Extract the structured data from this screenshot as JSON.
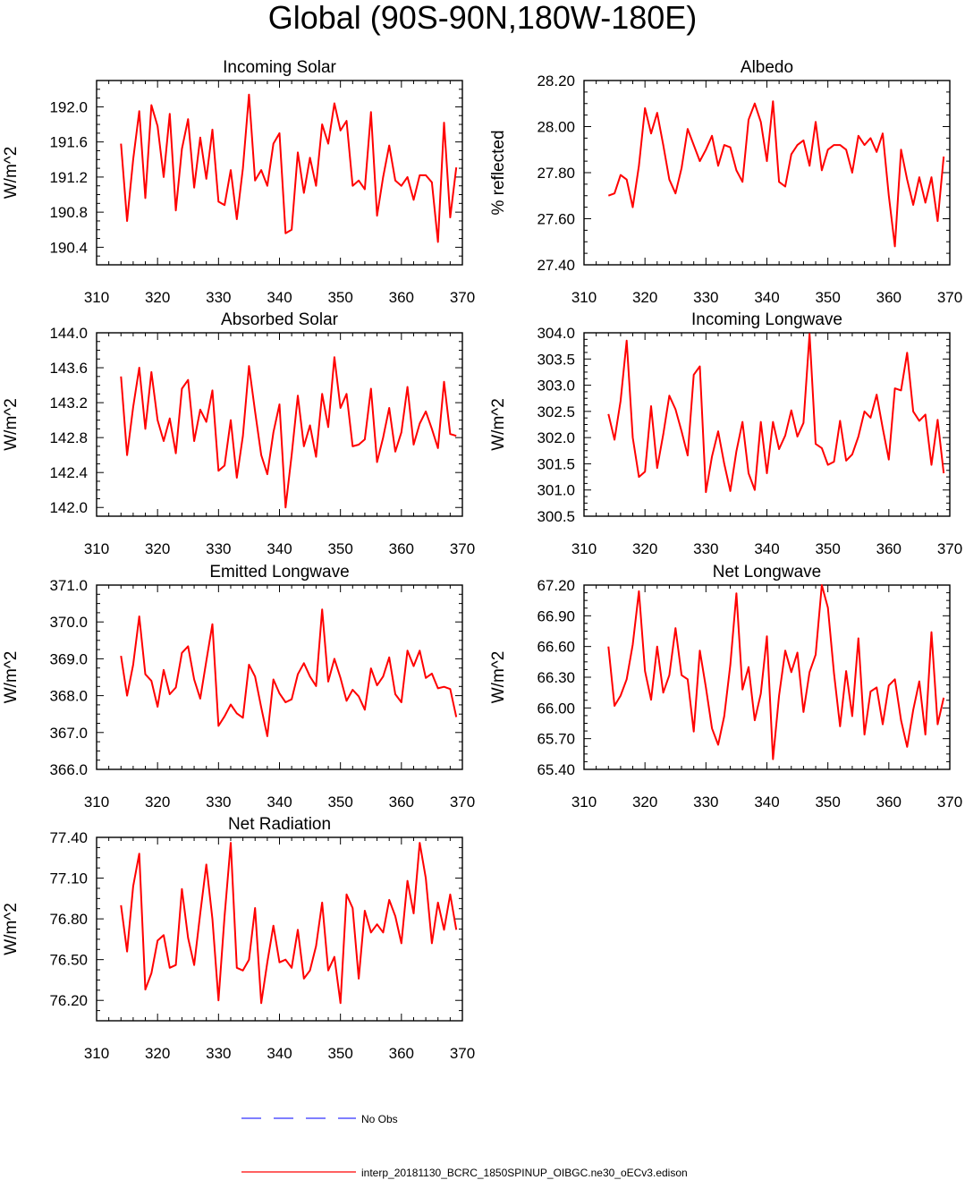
{
  "figure": {
    "title": "Global (90S-90N,180W-180E)"
  },
  "legend": {
    "items": [
      {
        "label": "No Obs",
        "color": "#3333ff",
        "style": "dashed"
      },
      {
        "label": "interp_20181130_BCRC_1850SPINUP_OIBGC.ne30_oECv3.edison",
        "color": "#ff0000",
        "style": "solid"
      }
    ]
  },
  "chart_data": [
    {
      "type": "line",
      "title": "Incoming Solar",
      "ylabel": "W/m^2",
      "xlim": [
        310,
        370
      ],
      "ylim": [
        190.2,
        192.3
      ],
      "xticks": [
        310,
        320,
        330,
        340,
        350,
        360,
        370
      ],
      "yticks": [
        "190.4",
        "190.8",
        "191.2",
        "191.6",
        "192.0"
      ],
      "x_start": 314,
      "series": [
        {
          "color": "#ff0000",
          "values": [
            191.58,
            190.7,
            191.4,
            191.95,
            190.96,
            192.02,
            191.78,
            191.2,
            191.92,
            190.82,
            191.52,
            191.86,
            191.08,
            191.65,
            191.18,
            191.74,
            190.92,
            190.88,
            191.28,
            190.72,
            191.3,
            192.14,
            191.16,
            191.28,
            191.1,
            191.58,
            191.7,
            190.56,
            190.6,
            191.48,
            191.02,
            191.42,
            191.1,
            191.8,
            191.58,
            192.04,
            191.73,
            191.84,
            191.1,
            191.16,
            191.06,
            191.94,
            190.76,
            191.2,
            191.56,
            191.16,
            191.1,
            191.2,
            190.94,
            191.22,
            191.22,
            191.14,
            190.46,
            191.82,
            190.74,
            191.31
          ]
        }
      ]
    },
    {
      "type": "line",
      "title": "Albedo",
      "ylabel": "% reflected",
      "xlim": [
        310,
        370
      ],
      "ylim": [
        27.4,
        28.2
      ],
      "xticks": [
        310,
        320,
        330,
        340,
        350,
        360,
        370
      ],
      "yticks": [
        "27.40",
        "27.60",
        "27.80",
        "28.00",
        "28.20"
      ],
      "x_start": 314,
      "series": [
        {
          "color": "#ff0000",
          "values": [
            27.7,
            27.71,
            27.79,
            27.77,
            27.65,
            27.83,
            28.08,
            27.97,
            28.06,
            27.92,
            27.77,
            27.71,
            27.82,
            27.99,
            27.92,
            27.85,
            27.9,
            27.96,
            27.83,
            27.92,
            27.91,
            27.81,
            27.76,
            28.03,
            28.1,
            28.02,
            27.85,
            28.11,
            27.76,
            27.74,
            27.88,
            27.92,
            27.94,
            27.83,
            28.02,
            27.81,
            27.9,
            27.92,
            27.92,
            27.9,
            27.8,
            27.96,
            27.92,
            27.95,
            27.89,
            27.97,
            27.7,
            27.48,
            27.9,
            27.77,
            27.66,
            27.78,
            27.67,
            27.78,
            27.59,
            27.87
          ]
        }
      ]
    },
    {
      "type": "line",
      "title": "Absorbed Solar",
      "ylabel": "W/m^2",
      "xlim": [
        310,
        370
      ],
      "ylim": [
        141.9,
        144.0
      ],
      "xticks": [
        310,
        320,
        330,
        340,
        350,
        360,
        370
      ],
      "yticks": [
        "142.0",
        "142.4",
        "142.8",
        "143.2",
        "143.6",
        "144.0"
      ],
      "x_start": 314,
      "series": [
        {
          "color": "#ff0000",
          "values": [
            143.5,
            142.6,
            143.15,
            143.6,
            142.9,
            143.55,
            143.0,
            142.76,
            143.02,
            142.62,
            143.36,
            143.46,
            142.76,
            143.12,
            142.98,
            143.34,
            142.42,
            142.48,
            143.0,
            142.34,
            142.82,
            143.62,
            143.1,
            142.6,
            142.38,
            142.86,
            143.18,
            142.0,
            142.6,
            143.28,
            142.7,
            142.94,
            142.58,
            143.3,
            142.92,
            143.72,
            143.14,
            143.3,
            142.7,
            142.72,
            142.78,
            143.36,
            142.52,
            142.8,
            143.14,
            142.64,
            142.86,
            143.38,
            142.72,
            142.96,
            143.1,
            142.9,
            142.68,
            143.44,
            142.84,
            142.82
          ]
        }
      ]
    },
    {
      "type": "line",
      "title": "Incoming Longwave",
      "ylabel": "W/m^2",
      "xlim": [
        310,
        370
      ],
      "ylim": [
        300.5,
        304.0
      ],
      "xticks": [
        310,
        320,
        330,
        340,
        350,
        360,
        370
      ],
      "yticks": [
        "300.5",
        "301.0",
        "301.5",
        "302.0",
        "302.5",
        "303.0",
        "303.5",
        "304.0"
      ],
      "x_start": 314,
      "series": [
        {
          "color": "#ff0000",
          "values": [
            302.45,
            301.96,
            302.7,
            303.85,
            302.0,
            301.25,
            301.35,
            302.6,
            301.42,
            302.06,
            302.8,
            302.54,
            302.12,
            301.66,
            303.2,
            303.36,
            300.96,
            301.64,
            302.12,
            301.5,
            300.98,
            301.74,
            302.3,
            301.32,
            301.0,
            302.3,
            301.32,
            302.3,
            301.78,
            302.04,
            302.52,
            302.02,
            302.28,
            303.98,
            301.88,
            301.8,
            301.48,
            301.54,
            302.32,
            301.56,
            301.68,
            302.02,
            302.5,
            302.38,
            302.82,
            302.18,
            301.58,
            302.94,
            302.9,
            303.62,
            302.5,
            302.32,
            302.44,
            301.48,
            302.34,
            301.32
          ]
        }
      ]
    },
    {
      "type": "line",
      "title": "Emitted Longwave",
      "ylabel": "W/m^2",
      "xlim": [
        310,
        370
      ],
      "ylim": [
        366.0,
        371.0
      ],
      "xticks": [
        310,
        320,
        330,
        340,
        350,
        360,
        370
      ],
      "yticks": [
        "366.0",
        "367.0",
        "368.0",
        "369.0",
        "370.0",
        "371.0"
      ],
      "x_start": 314,
      "series": [
        {
          "color": "#ff0000",
          "values": [
            369.08,
            368.0,
            368.84,
            370.15,
            368.58,
            368.4,
            367.7,
            368.7,
            368.04,
            368.22,
            369.16,
            369.34,
            368.44,
            367.92,
            368.94,
            369.94,
            367.18,
            367.44,
            367.76,
            367.52,
            367.4,
            368.84,
            368.52,
            367.68,
            366.9,
            368.44,
            368.06,
            367.82,
            367.9,
            368.58,
            368.88,
            368.52,
            368.26,
            370.34,
            368.38,
            369.0,
            368.48,
            367.86,
            368.16,
            367.98,
            367.62,
            368.74,
            368.28,
            368.52,
            369.04,
            368.04,
            367.82,
            369.22,
            368.8,
            369.22,
            368.48,
            368.6,
            368.2,
            368.24,
            368.18,
            367.42
          ]
        }
      ]
    },
    {
      "type": "line",
      "title": "Net Longwave",
      "ylabel": "W/m^2",
      "xlim": [
        310,
        370
      ],
      "ylim": [
        65.4,
        67.2
      ],
      "xticks": [
        310,
        320,
        330,
        340,
        350,
        360,
        370
      ],
      "yticks": [
        "65.40",
        "65.70",
        "66.00",
        "66.30",
        "66.60",
        "66.90",
        "67.20"
      ],
      "x_start": 314,
      "series": [
        {
          "color": "#ff0000",
          "values": [
            66.6,
            66.02,
            66.12,
            66.28,
            66.62,
            67.14,
            66.36,
            66.08,
            66.6,
            66.15,
            66.32,
            66.78,
            66.32,
            66.28,
            65.77,
            66.56,
            66.2,
            65.8,
            65.64,
            65.92,
            66.42,
            67.12,
            66.18,
            66.4,
            65.88,
            66.14,
            66.7,
            65.5,
            66.12,
            66.56,
            66.35,
            66.54,
            65.96,
            66.35,
            66.52,
            67.2,
            66.98,
            66.34,
            65.82,
            66.36,
            65.92,
            66.68,
            65.74,
            66.16,
            66.2,
            65.84,
            66.22,
            66.28,
            65.88,
            65.62,
            65.98,
            66.26,
            65.74,
            66.74,
            65.84,
            66.1
          ]
        }
      ]
    },
    {
      "type": "line",
      "title": "Net Radiation",
      "ylabel": "W/m^2",
      "xlim": [
        310,
        370
      ],
      "ylim": [
        76.05,
        77.4
      ],
      "xticks": [
        310,
        320,
        330,
        340,
        350,
        360,
        370
      ],
      "yticks": [
        "76.20",
        "76.50",
        "76.80",
        "77.10",
        "77.40"
      ],
      "x_start": 314,
      "series": [
        {
          "color": "#ff0000",
          "values": [
            76.9,
            76.56,
            77.04,
            77.28,
            76.28,
            76.4,
            76.64,
            76.68,
            76.44,
            76.46,
            77.02,
            76.66,
            76.46,
            76.84,
            77.2,
            76.8,
            76.2,
            76.82,
            77.36,
            76.44,
            76.42,
            76.5,
            76.88,
            76.18,
            76.48,
            76.75,
            76.48,
            76.5,
            76.44,
            76.72,
            76.36,
            76.42,
            76.6,
            76.92,
            76.42,
            76.52,
            76.18,
            76.98,
            76.88,
            76.36,
            76.86,
            76.7,
            76.76,
            76.7,
            76.94,
            76.82,
            76.62,
            77.08,
            76.84,
            77.36,
            77.1,
            76.62,
            76.92,
            76.72,
            76.98,
            76.72
          ]
        }
      ]
    }
  ]
}
